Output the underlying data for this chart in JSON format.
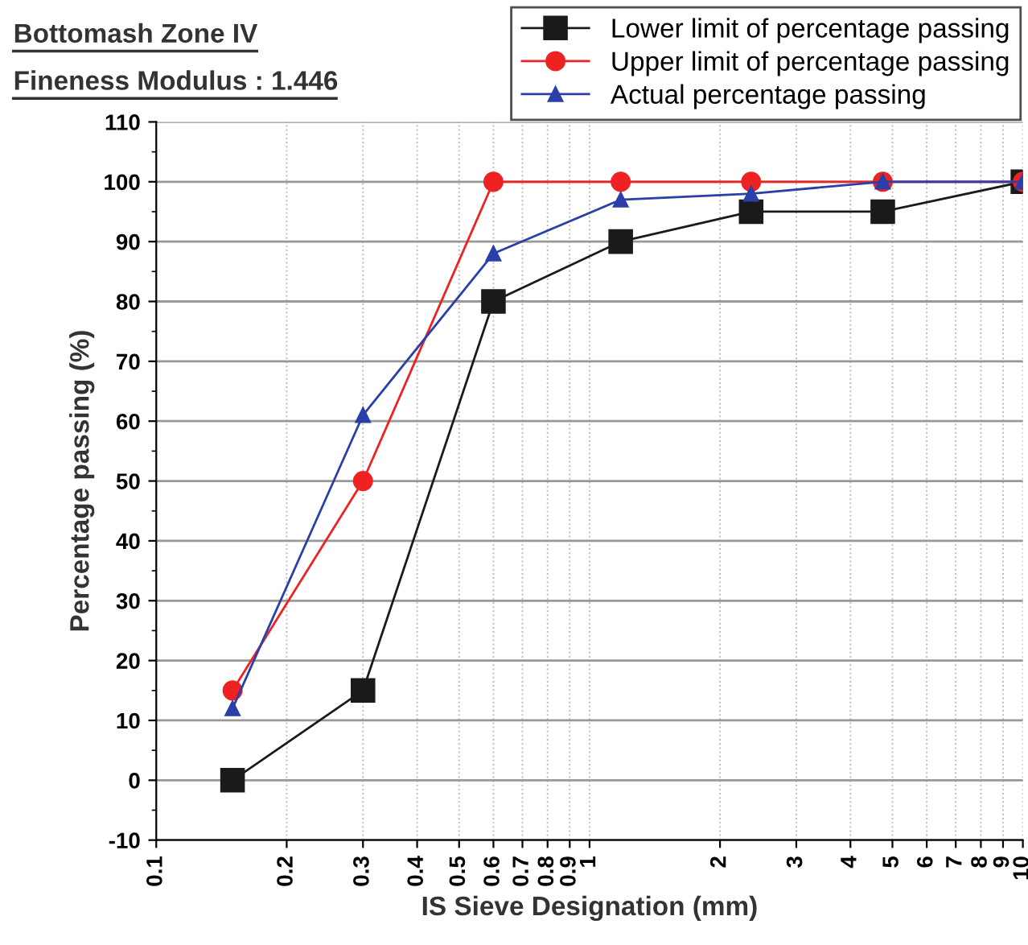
{
  "chart_data": {
    "type": "line",
    "title": "Bottomash Zone IV",
    "subtitle": "Fineness Modulus : 1.446",
    "xlabel": "IS Sieve Designation (mm)",
    "ylabel": "Percentage passing (%)",
    "log": "x",
    "x": [
      0.15,
      0.3,
      0.6,
      1.18,
      2.36,
      4.75,
      10
    ],
    "series": [
      {
        "name": "Lower limit of percentage passing",
        "color": "#1a1a1a",
        "marker": "square",
        "values": [
          0,
          15,
          80,
          90,
          95,
          95,
          100
        ]
      },
      {
        "name": "Upper limit of percentage passing",
        "color": "#ee2222",
        "marker": "circle",
        "values": [
          15,
          50,
          100,
          100,
          100,
          100,
          100
        ]
      },
      {
        "name": "Actual percentage passing",
        "color": "#2a3fa8",
        "marker": "triangle",
        "values": [
          12,
          61,
          88,
          97,
          98,
          100,
          100
        ]
      }
    ],
    "xlim": [
      0.1,
      10
    ],
    "xticks": [
      0.1,
      0.2,
      0.3,
      0.4,
      0.5,
      0.6,
      0.7,
      0.8,
      0.9,
      1,
      2,
      3,
      4,
      5,
      6,
      7,
      8,
      9,
      10
    ],
    "ylim": [
      -10,
      110
    ],
    "yticks": [
      -10,
      0,
      10,
      20,
      30,
      40,
      50,
      60,
      70,
      80,
      90,
      100,
      110
    ],
    "grid": true,
    "legend": "top right"
  }
}
